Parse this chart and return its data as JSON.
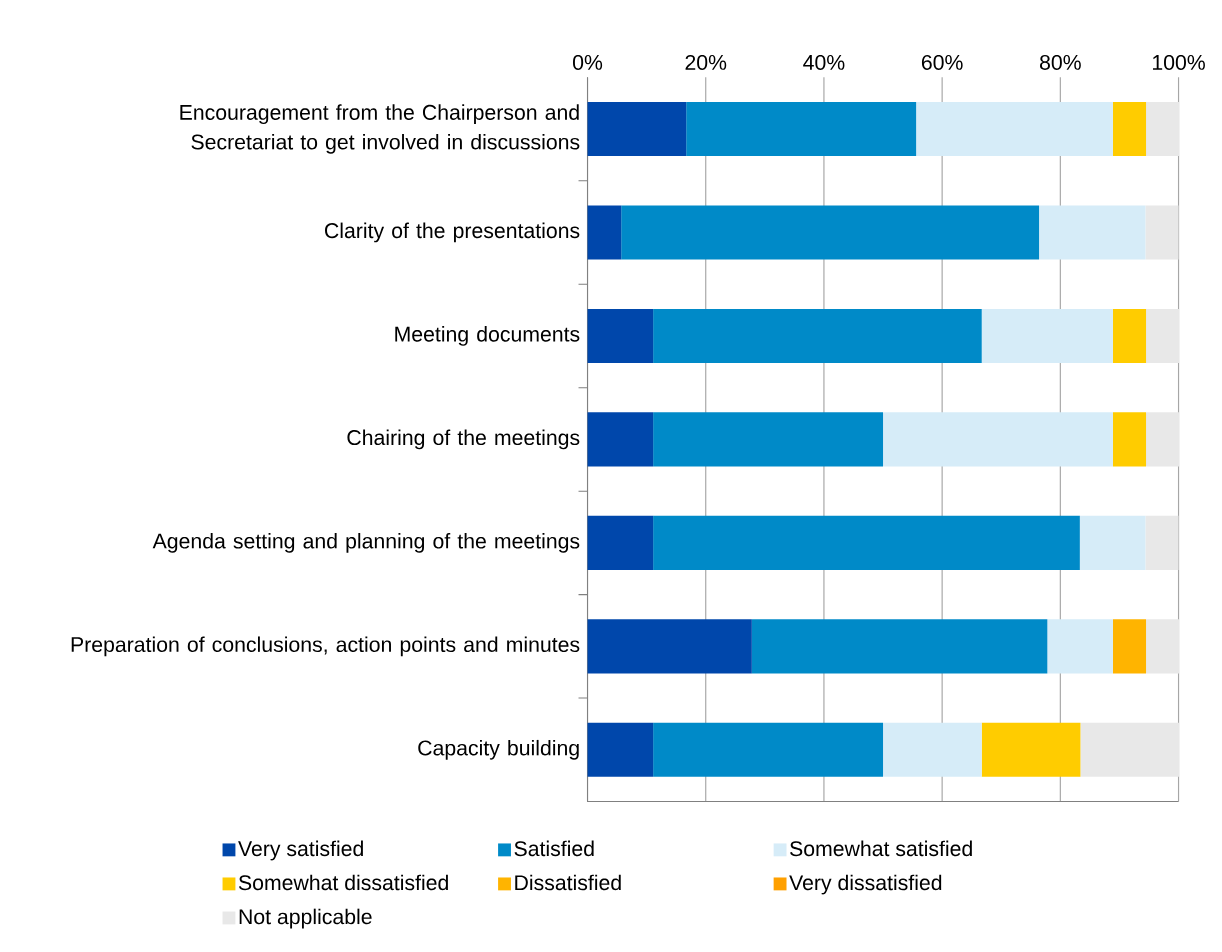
{
  "chart_data": {
    "type": "bar",
    "orientation": "horizontal",
    "stacked": true,
    "categories": [
      "Encouragement from the Chairperson and Secretariat to get involved in discussions",
      "Clarity of the presentations",
      "Meeting documents",
      "Chairing of the meetings",
      "Agenda setting and planning of the meetings",
      "Preparation of conclusions, action points and minutes",
      "Capacity building"
    ],
    "series": [
      {
        "name": "Very satisfied",
        "color": "#0047ab",
        "values": [
          16.7,
          5.7,
          11.1,
          11.1,
          11.1,
          27.8,
          11.1
        ]
      },
      {
        "name": "Satisfied",
        "color": "#008ac8",
        "values": [
          38.9,
          70.7,
          55.6,
          38.9,
          72.2,
          50.0,
          38.9
        ]
      },
      {
        "name": "Somewhat satisfied",
        "color": "#d6ecf8",
        "values": [
          33.3,
          18.0,
          22.2,
          38.9,
          11.1,
          11.1,
          16.7
        ]
      },
      {
        "name": "Somewhat dissatisfied",
        "color": "#ffcc00",
        "values": [
          5.6,
          0,
          5.6,
          5.6,
          0,
          0,
          16.7
        ]
      },
      {
        "name": "Dissatisfied",
        "color": "#ffb400",
        "values": [
          0,
          0,
          0,
          0,
          0,
          5.6,
          0
        ]
      },
      {
        "name": "Very dissatisfied",
        "color": "#ffa000",
        "values": [
          0,
          0,
          0,
          0,
          0,
          0,
          0
        ]
      },
      {
        "name": "Not applicable",
        "color": "#e8e8e8",
        "values": [
          5.6,
          5.6,
          5.6,
          5.6,
          5.6,
          5.6,
          16.7
        ]
      }
    ],
    "xlim": [
      0,
      100
    ],
    "xticks": [
      {
        "value": 0,
        "label": "0%"
      },
      {
        "value": 20,
        "label": "20%"
      },
      {
        "value": 40,
        "label": "40%"
      },
      {
        "value": 60,
        "label": "60%"
      },
      {
        "value": 80,
        "label": "80%"
      },
      {
        "value": 100,
        "label": "100%"
      }
    ],
    "grid": "x",
    "legend": "bottom"
  }
}
